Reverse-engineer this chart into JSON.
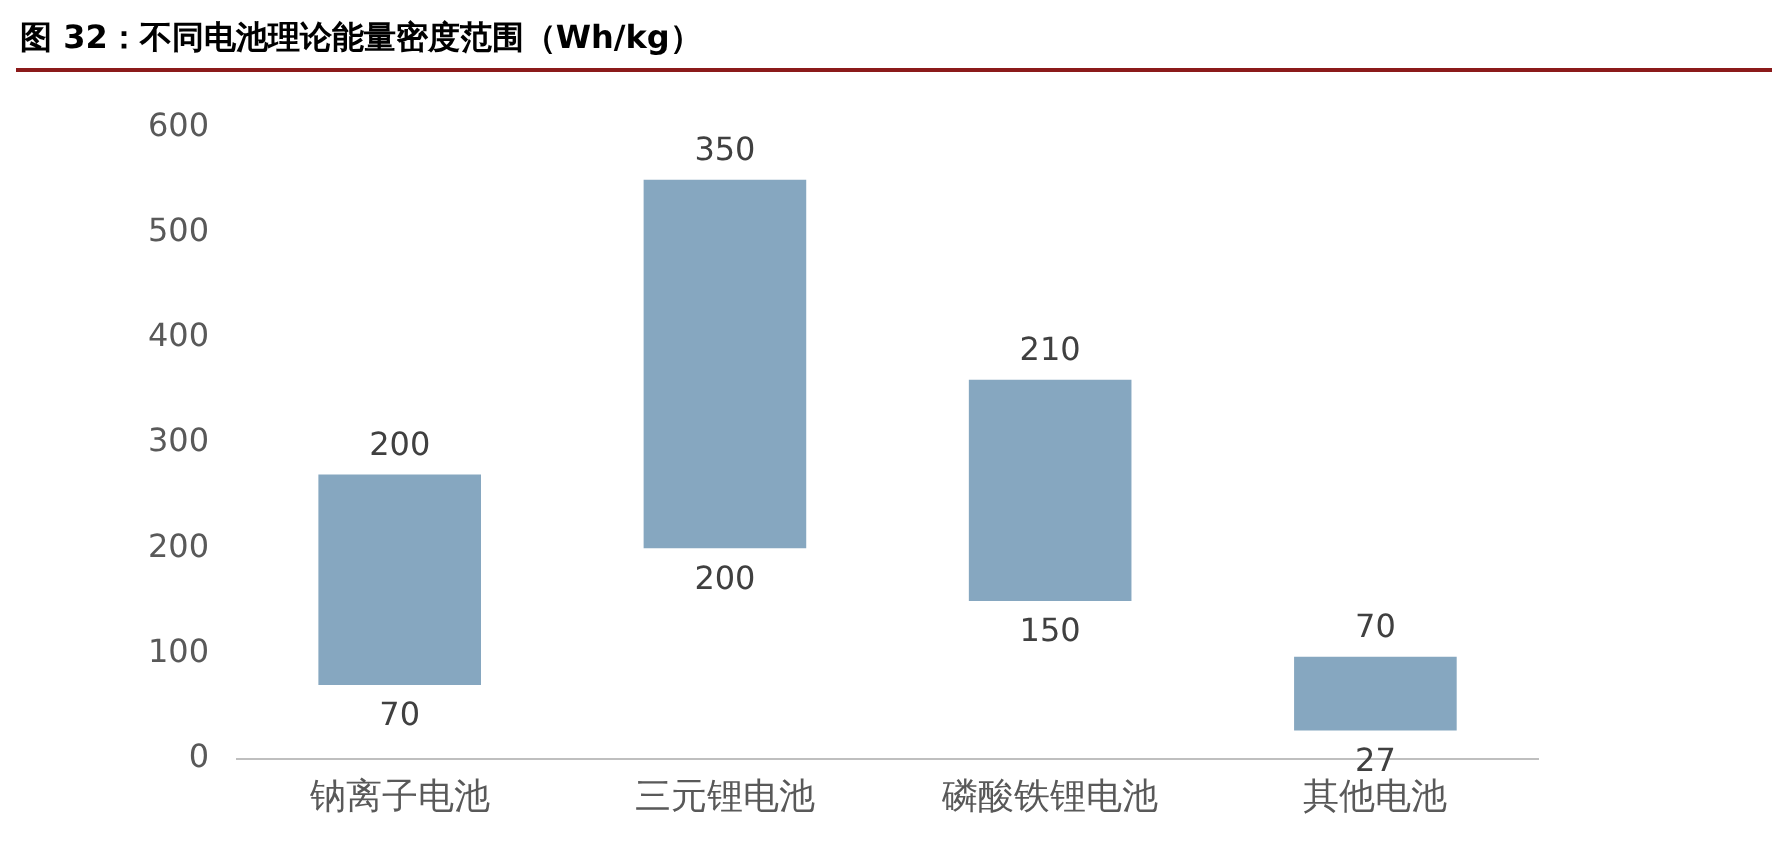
{
  "chart_data": {
    "type": "bar",
    "title": "图 32：不同电池理论能量密度范围（Wh/kg）",
    "categories": [
      "钠离子电池",
      "三元锂电池",
      "磷酸铁锂电池",
      "其他电池"
    ],
    "values": [
      200,
      350,
      210,
      70
    ],
    "base": [
      70,
      200,
      150,
      27
    ],
    "color": "#86a7c0",
    "ylim": [
      0,
      600
    ],
    "yticks": [
      0,
      100,
      200,
      300,
      400,
      500,
      600
    ],
    "grid": false,
    "legend": false,
    "data_labels": true,
    "annotations": [
      {
        "text": "70",
        "x": "钠离子电池",
        "y": 70
      },
      {
        "text": "200",
        "x": "三元锂电池",
        "y": 200
      },
      {
        "text": "150",
        "x": "磷酸铁锂电池",
        "y": 150
      },
      {
        "text": "27",
        "x": "其他电池",
        "y": 27
      }
    ]
  }
}
